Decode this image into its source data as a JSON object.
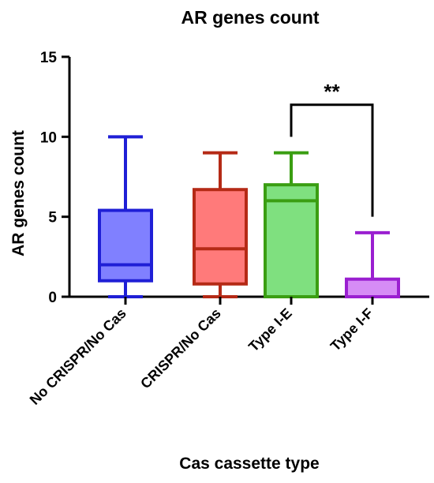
{
  "chart_data": {
    "type": "box",
    "title": "AR genes count",
    "xlabel": "Cas cassette type",
    "ylabel": "AR genes count",
    "ylim": [
      0,
      15
    ],
    "yticks": [
      0,
      5,
      10,
      15
    ],
    "grid": false,
    "categories": [
      "No CRISPR/No Cas",
      "CRISPR/No Cas",
      "Type I-E",
      "Type I-F"
    ],
    "boxes": [
      {
        "category": "No CRISPR/No Cas",
        "min": 0,
        "q1": 1,
        "median": 2,
        "q3": 5.4,
        "max": 10,
        "stroke": "#1f1fd6",
        "fill": "#8080ff"
      },
      {
        "category": "CRISPR/No Cas",
        "min": 0,
        "q1": 0.8,
        "median": 3,
        "q3": 6.7,
        "max": 9,
        "stroke": "#b52a16",
        "fill": "#ff7a7a"
      },
      {
        "category": "Type I-E",
        "min": 0,
        "q1": 0,
        "median": 6,
        "q3": 7,
        "max": 9,
        "stroke": "#3a9e12",
        "fill": "#7fe07f"
      },
      {
        "category": "Type I-F",
        "min": 0,
        "q1": 0,
        "median": 0,
        "q3": 1.1,
        "max": 4,
        "stroke": "#9a1fd0",
        "fill": "#d68cf5"
      }
    ],
    "annotations": [
      {
        "text": "**",
        "between": [
          "Type I-E",
          "Type I-F"
        ],
        "bracket_y": 12,
        "left_end": 10,
        "right_end": 5
      }
    ]
  }
}
